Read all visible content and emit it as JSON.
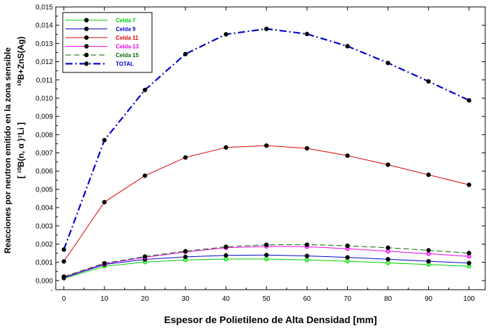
{
  "chart_data": {
    "type": "line",
    "xlabel": "Espesor de Polietileno de Alta Densidad [mm]",
    "ylabel_line1": "Reacciones por neutron emitido en la zona sensible",
    "ylabel_line2": "[ ¹⁰B(n, α )⁷Li ]",
    "ylabel_right": "¹⁰B+ZnS(Ag)",
    "xlim": [
      -2,
      104
    ],
    "ylim": [
      -0.0005,
      0.015
    ],
    "x_ticks": [
      0,
      10,
      20,
      30,
      40,
      50,
      60,
      70,
      80,
      90,
      100
    ],
    "y_ticks": [
      "-",
      "0,000",
      "0,001",
      "0,002",
      "0,003",
      "0,004",
      "0,005",
      "0,006",
      "0,007",
      "0,008",
      "0,009",
      "0,010",
      "0,011",
      "0,012",
      "0,013",
      "0,014",
      "0,015"
    ],
    "x": [
      0,
      10,
      20,
      30,
      40,
      50,
      60,
      70,
      80,
      90,
      100
    ],
    "legend_position": "top-left",
    "series": [
      {
        "name": "Celda 7",
        "color": "#00cc00",
        "dash": "solid",
        "width": 1,
        "values": [
          0.00012,
          0.00078,
          0.00102,
          0.00113,
          0.00118,
          0.00118,
          0.00113,
          0.00106,
          0.00097,
          0.00088,
          0.00079
        ]
      },
      {
        "name": "Celda 9",
        "color": "#0000cc",
        "dash": "solid",
        "width": 1,
        "values": [
          0.00015,
          0.00088,
          0.00116,
          0.0013,
          0.00138,
          0.0014,
          0.00135,
          0.00127,
          0.00117,
          0.00106,
          0.00096
        ]
      },
      {
        "name": "Celda 11",
        "color": "#dd0000",
        "dash": "solid",
        "width": 1,
        "values": [
          0.00105,
          0.0043,
          0.00575,
          0.00675,
          0.0073,
          0.0074,
          0.00725,
          0.00685,
          0.00635,
          0.0058,
          0.00525
        ]
      },
      {
        "name": "Celda 13",
        "color": "#ee00ee",
        "dash": "solid",
        "width": 1,
        "values": [
          0.0002,
          0.00092,
          0.00127,
          0.00157,
          0.0018,
          0.00187,
          0.00186,
          0.00175,
          0.00161,
          0.00147,
          0.00133
        ]
      },
      {
        "name": "Celda 15",
        "color": "#006600",
        "dash": "dashed",
        "width": 1,
        "values": [
          0.00022,
          0.00095,
          0.00132,
          0.00161,
          0.00185,
          0.00196,
          0.00197,
          0.00191,
          0.0018,
          0.00166,
          0.00151
        ]
      },
      {
        "name": "TOTAL",
        "color": "#0000cc",
        "dash": "dashdot",
        "width": 2.2,
        "values": [
          0.0017,
          0.0077,
          0.01045,
          0.01242,
          0.0135,
          0.0138,
          0.01352,
          0.01285,
          0.01193,
          0.01092,
          0.00988
        ]
      }
    ]
  }
}
